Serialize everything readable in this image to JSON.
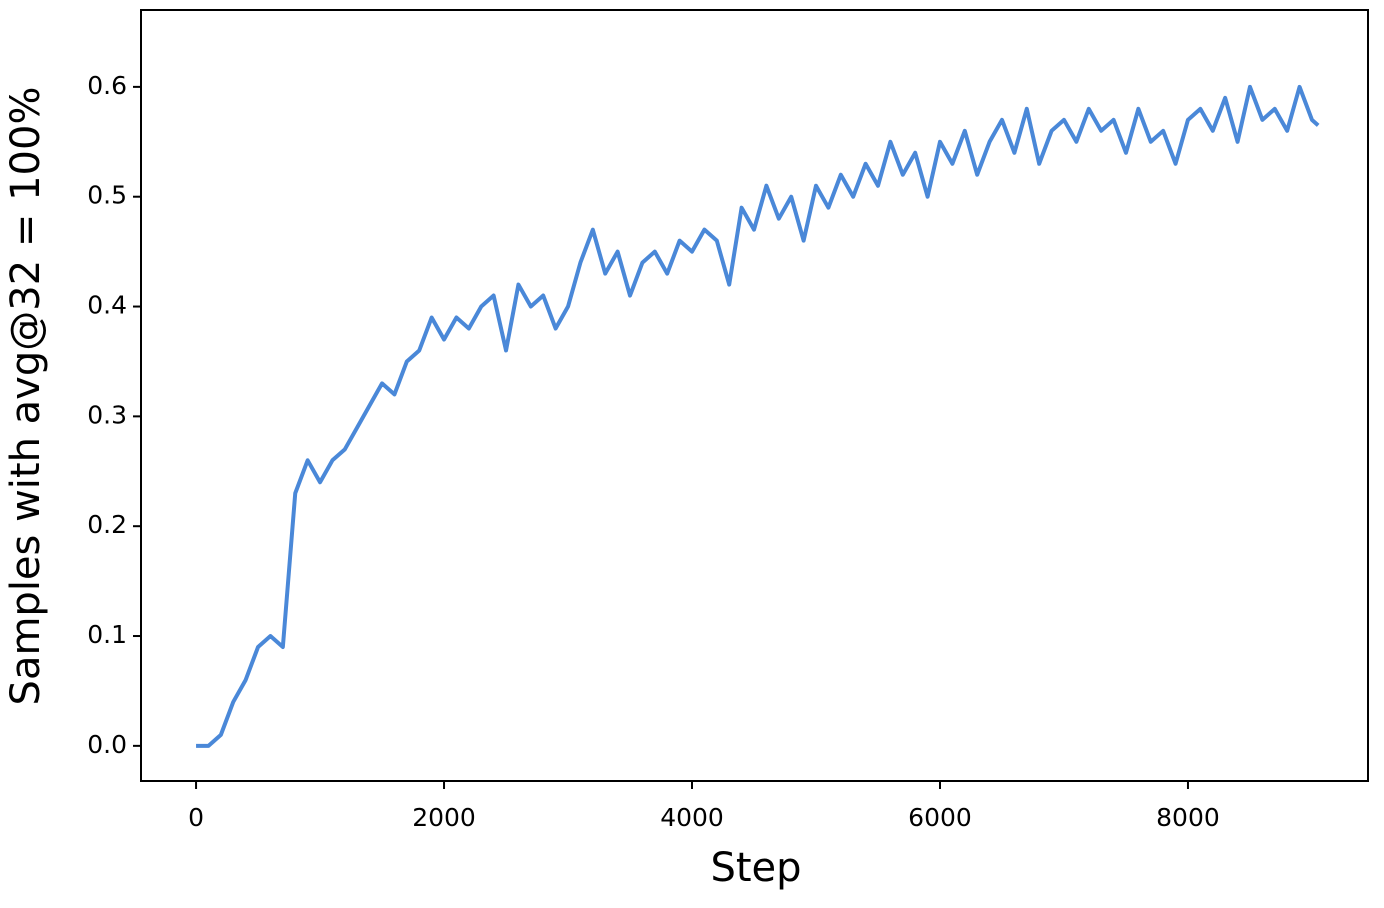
{
  "chart_data": {
    "type": "line",
    "xlabel": "Step",
    "ylabel": "Samples with avg@32 = 100%",
    "x": [
      0,
      100,
      200,
      300,
      400,
      500,
      600,
      700,
      800,
      900,
      1000,
      1100,
      1200,
      1300,
      1400,
      1500,
      1600,
      1700,
      1800,
      1900,
      2000,
      2100,
      2200,
      2300,
      2400,
      2500,
      2600,
      2700,
      2800,
      2900,
      3000,
      3100,
      3200,
      3300,
      3400,
      3500,
      3600,
      3700,
      3800,
      3900,
      4000,
      4100,
      4200,
      4300,
      4400,
      4500,
      4600,
      4700,
      4800,
      4900,
      5000,
      5100,
      5200,
      5300,
      5400,
      5500,
      5600,
      5700,
      5800,
      5900,
      6000,
      6100,
      6200,
      6300,
      6400,
      6500,
      6600,
      6700,
      6800,
      6900,
      7000,
      7100,
      7200,
      7300,
      7400,
      7500,
      7600,
      7700,
      7800,
      7900,
      8000,
      8100,
      8200,
      8300,
      8400,
      8500,
      8600,
      8700,
      8800,
      8900,
      9000,
      9050
    ],
    "series": [
      {
        "color": "#4a88d8",
        "values": [
          0,
          0,
          0.01,
          0.04,
          0.06,
          0.09,
          0.1,
          0.09,
          0.23,
          0.26,
          0.24,
          0.26,
          0.27,
          0.29,
          0.31,
          0.33,
          0.32,
          0.35,
          0.36,
          0.39,
          0.37,
          0.39,
          0.38,
          0.4,
          0.41,
          0.36,
          0.42,
          0.4,
          0.41,
          0.38,
          0.4,
          0.44,
          0.47,
          0.43,
          0.45,
          0.41,
          0.44,
          0.45,
          0.43,
          0.46,
          0.45,
          0.47,
          0.46,
          0.42,
          0.49,
          0.47,
          0.51,
          0.48,
          0.5,
          0.46,
          0.51,
          0.49,
          0.52,
          0.5,
          0.53,
          0.51,
          0.55,
          0.52,
          0.54,
          0.5,
          0.55,
          0.53,
          0.56,
          0.52,
          0.55,
          0.57,
          0.54,
          0.58,
          0.53,
          0.56,
          0.57,
          0.55,
          0.58,
          0.56,
          0.57,
          0.54,
          0.58,
          0.55,
          0.56,
          0.53,
          0.57,
          0.58,
          0.56,
          0.59,
          0.55,
          0.6,
          0.57,
          0.58,
          0.56,
          0.6,
          0.57,
          0.565
        ]
      }
    ],
    "xlim": [
      -444,
      9452
    ],
    "ylim": [
      -0.032,
      0.67
    ],
    "xticks": [
      0,
      2000,
      4000,
      6000,
      8000
    ],
    "yticks": [
      {
        "value": 0,
        "label": "0.0"
      },
      0.1,
      0.2,
      0.3,
      0.4,
      0.5,
      0.6
    ]
  }
}
